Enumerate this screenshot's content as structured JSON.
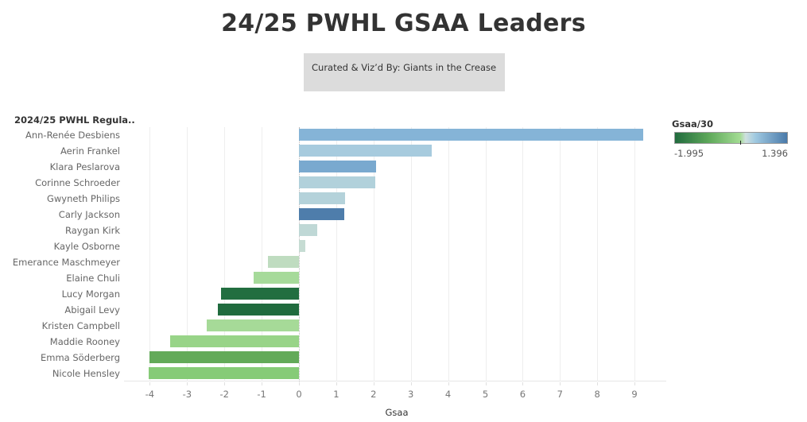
{
  "header": {
    "title": "24/25 PWHL GSAA Leaders",
    "credit": "Curated & Viz’d By: Giants in the Crease"
  },
  "row_header": "2024/25 PWHL Regula..",
  "x_axis": {
    "title": "Gsaa",
    "ticks": [
      "-4",
      "-3",
      "-2",
      "-1",
      "0",
      "1",
      "2",
      "3",
      "4",
      "5",
      "6",
      "7",
      "8",
      "9"
    ]
  },
  "legend": {
    "title": "Gsaa/30",
    "min": "-1.995",
    "max": "1.396",
    "low_color": "#216b3e",
    "mid_color": "#cfe0df",
    "high_color": "#4a7aaa"
  },
  "chart_data": {
    "type": "bar",
    "orientation": "horizontal",
    "title": "24/25 PWHL GSAA Leaders",
    "subtitle": "Curated & Viz’d By: Giants in the Crease",
    "xlabel": "Gsaa",
    "ylabel": "2024/25 PWHL Regula..",
    "xlim": [
      -4.4,
      10.1
    ],
    "grid": true,
    "legend_position": "right",
    "color_encoding": "Gsaa/30 (diverging green-blue, -1.995 to 1.396)",
    "categories": [
      "Ann-Renée Desbiens",
      "Aerin Frankel",
      "Klara Peslarova",
      "Corinne Schroeder",
      "Gwyneth Philips",
      "Carly Jackson",
      "Raygan Kirk",
      "Kayle Osborne",
      "Emerance Maschmeyer",
      "Elaine Chuli",
      "Lucy Morgan",
      "Abigail Levy",
      "Kristen Campbell",
      "Maddie Rooney",
      "Emma Söderberg",
      "Nicole Hensley"
    ],
    "values": [
      9.23,
      3.56,
      2.07,
      2.05,
      1.24,
      1.22,
      0.49,
      0.17,
      -0.83,
      -1.22,
      -2.09,
      -2.17,
      -2.47,
      -3.45,
      -4.01,
      -4.03
    ],
    "colors": [
      "#85b4d7",
      "#a7cbde",
      "#79a9cf",
      "#b1d1db",
      "#b4d2da",
      "#4e7dab",
      "#bfd8d6",
      "#c6dcd3",
      "#bfdcc0",
      "#a6da9a",
      "#226e40",
      "#206b3e",
      "#a6da98",
      "#98d488",
      "#63aa59",
      "#86cb77"
    ]
  }
}
